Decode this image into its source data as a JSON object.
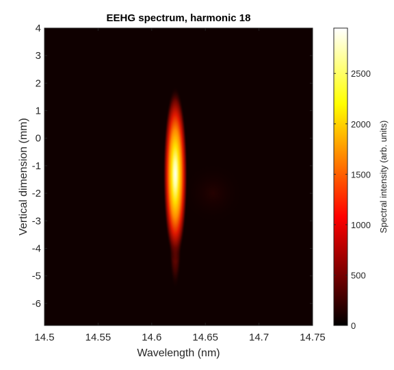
{
  "chart_data": {
    "type": "heatmap",
    "title": "EEHG spectrum, harmonic 18",
    "xlabel": "Wavelength (nm)",
    "ylabel": "Vertical dimension (mm)",
    "xlim": [
      14.5,
      14.75
    ],
    "ylim": [
      -6.8,
      4
    ],
    "x_ticks": [
      "14.5",
      "14.55",
      "14.6",
      "14.65",
      "14.7",
      "14.75"
    ],
    "y_ticks": [
      "4",
      "3",
      "2",
      "1",
      "0",
      "-1",
      "-2",
      "-3",
      "-4",
      "-5",
      "-6"
    ],
    "colormap": "hot",
    "colorbar": {
      "label": "Spectral intensity (arb. units)",
      "range": [
        0,
        2950
      ],
      "ticks": [
        "2500",
        "2000",
        "1500",
        "1000",
        "500",
        "0"
      ]
    },
    "peak": {
      "wavelength_nm": 14.622,
      "vertical_mm": -1.5,
      "intensity": 2950
    },
    "background_color": "#0f0000"
  }
}
